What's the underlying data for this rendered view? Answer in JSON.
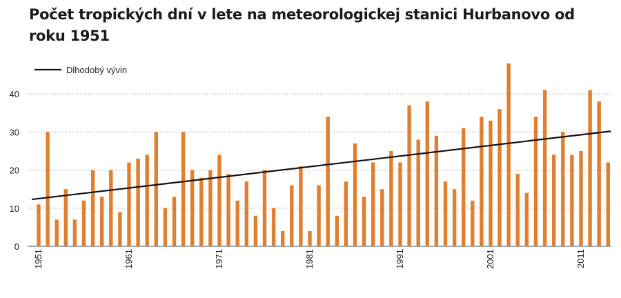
{
  "chart_data": {
    "type": "bar",
    "title": "Počet tropických dní v lete na meteorologickej stanici Hurbanovo od roku 1951",
    "xlabel": "",
    "ylabel": "",
    "ylim": [
      0,
      48
    ],
    "yticks": [
      0,
      10,
      20,
      30,
      40
    ],
    "xtick_labels": [
      "1951",
      "1961",
      "1971",
      "1981",
      "1991",
      "2001",
      "2011"
    ],
    "grid": "horizontal-dotted",
    "legend": {
      "position": "top-left",
      "entries": [
        "Dlhodobý vývin"
      ]
    },
    "colors": {
      "bars": "#e07f2f",
      "trend": "#111111",
      "grid": "#9a9a9a"
    },
    "x": [
      1951,
      1952,
      1953,
      1954,
      1955,
      1956,
      1957,
      1958,
      1959,
      1960,
      1961,
      1962,
      1963,
      1964,
      1965,
      1966,
      1967,
      1968,
      1969,
      1970,
      1971,
      1972,
      1973,
      1974,
      1975,
      1976,
      1977,
      1978,
      1979,
      1980,
      1981,
      1982,
      1983,
      1984,
      1985,
      1986,
      1987,
      1988,
      1989,
      1990,
      1991,
      1992,
      1993,
      1994,
      1995,
      1996,
      1997,
      1998,
      1999,
      2000,
      2001,
      2002,
      2003,
      2004,
      2005,
      2006,
      2007,
      2008,
      2009,
      2010,
      2011,
      2012,
      2013,
      2014
    ],
    "series": [
      {
        "type": "bar",
        "values": [
          11,
          30,
          7,
          15,
          7,
          12,
          20,
          13,
          20,
          9,
          22,
          23,
          24,
          30,
          10,
          13,
          30,
          20,
          18,
          20,
          24,
          19,
          12,
          17,
          8,
          20,
          10,
          4,
          16,
          21,
          4,
          16,
          34,
          8,
          17,
          27,
          13,
          22,
          15,
          25,
          22,
          37,
          28,
          38,
          29,
          17,
          15,
          31,
          12,
          34,
          33,
          36,
          48,
          19,
          14,
          34,
          41,
          24,
          30,
          24,
          25,
          41,
          38,
          22
        ]
      },
      {
        "name": "Dlhodobý vývin",
        "type": "line",
        "x": [
          1951,
          2014
        ],
        "values": [
          12.3,
          30.2
        ]
      }
    ]
  }
}
